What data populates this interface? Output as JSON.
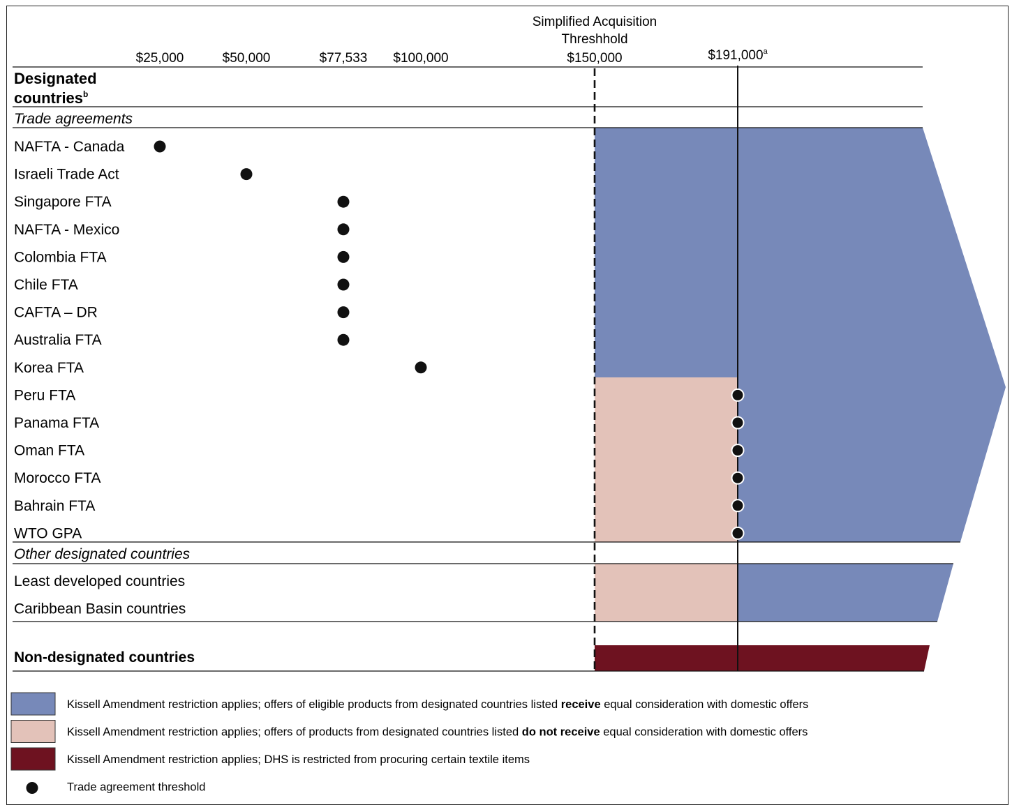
{
  "axis": {
    "sat_title_line1": "Simplified Acquisition",
    "sat_title_line2": "Threshhold",
    "ticks": [
      {
        "id": "t25000",
        "label": "$25,000",
        "value": 25000
      },
      {
        "id": "t50000",
        "label": "$50,000",
        "value": 50000
      },
      {
        "id": "t77533",
        "label": "$77,533",
        "value": 77533
      },
      {
        "id": "t100000",
        "label": "$100,000",
        "value": 100000
      },
      {
        "id": "t150000",
        "label": "$150,000",
        "value": 150000
      },
      {
        "id": "t191000",
        "label": "$191,000",
        "value": 191000,
        "footnote": "a"
      }
    ]
  },
  "sections": {
    "designated_line1": "Designated",
    "designated_line2": "countries",
    "designated_footnote": "b",
    "trade_agreements": "Trade agreements",
    "other_designated": "Other designated countries",
    "non_designated": "Non-designated countries"
  },
  "agreements": [
    {
      "name": "NAFTA - Canada",
      "threshold": 25000
    },
    {
      "name": "Israeli Trade Act",
      "threshold": 50000
    },
    {
      "name": "Singapore FTA",
      "threshold": 77533
    },
    {
      "name": "NAFTA - Mexico",
      "threshold": 77533
    },
    {
      "name": "Colombia FTA",
      "threshold": 77533
    },
    {
      "name": "Chile FTA",
      "threshold": 77533
    },
    {
      "name": "CAFTA – DR",
      "threshold": 77533
    },
    {
      "name": "Australia FTA",
      "threshold": 77533
    },
    {
      "name": "Korea FTA",
      "threshold": 100000
    },
    {
      "name": "Peru FTA",
      "threshold": 191000
    },
    {
      "name": "Panama FTA",
      "threshold": 191000
    },
    {
      "name": "Oman FTA",
      "threshold": 191000
    },
    {
      "name": "Morocco FTA",
      "threshold": 191000
    },
    {
      "name": "Bahrain FTA",
      "threshold": 191000
    },
    {
      "name": "WTO GPA",
      "threshold": 191000
    }
  ],
  "other_countries": [
    {
      "name": "Least developed countries"
    },
    {
      "name": "Caribbean Basin countries"
    }
  ],
  "legend": [
    {
      "color": "#7789b9",
      "text_before": "Kissell Amendment restriction applies; offers of eligible products from designated countries listed ",
      "text_bold": "receive",
      "text_after": " equal consideration with domestic offers"
    },
    {
      "color": "#e3c2b9",
      "text_before": "Kissell Amendment restriction applies; offers of products from designated countries listed ",
      "text_bold": "do not receive",
      "text_after": " equal consideration with domestic offers"
    },
    {
      "color": "#6e1220",
      "text_before": "Kissell Amendment restriction applies; DHS is restricted from procuring certain textile items",
      "text_bold": "",
      "text_after": ""
    },
    {
      "marker": "dot",
      "text_before": "Trade agreement threshold",
      "text_bold": "",
      "text_after": ""
    }
  ],
  "colors": {
    "blue": "#7789b9",
    "pink": "#e3c2b9",
    "maroon": "#6e1220",
    "ink": "#111111"
  }
}
